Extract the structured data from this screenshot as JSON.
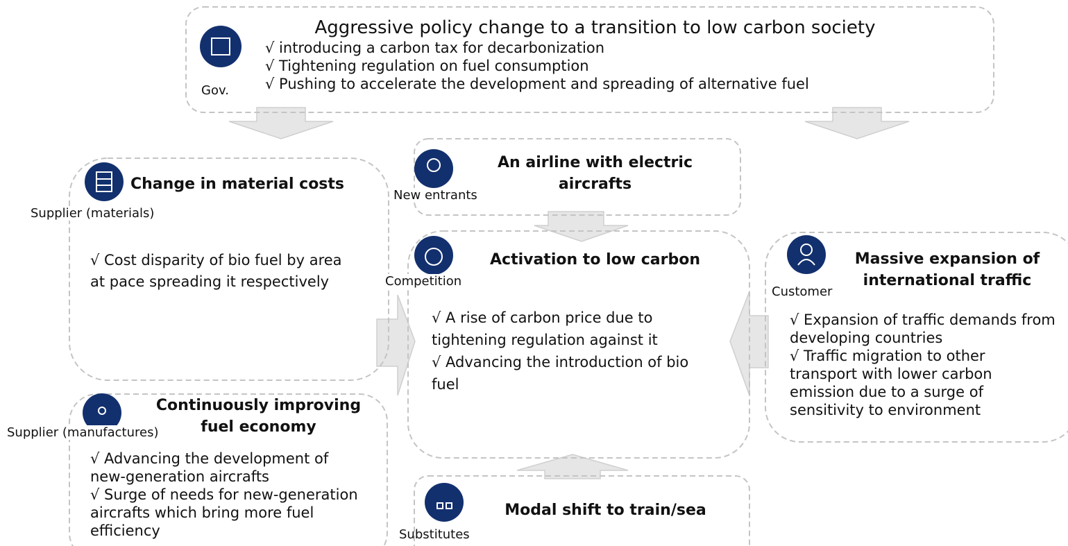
{
  "gov": {
    "label": "Gov.",
    "title": "Aggressive policy change to a transition to low carbon society",
    "bullets": [
      "√  introducing a carbon tax for decarbonization",
      "√  Tightening regulation on fuel consumption",
      "√  Pushing to accelerate the development and spreading of alternative fuel"
    ]
  },
  "new_entrants": {
    "label": "New entrants",
    "title": "An airline with electric aircrafts"
  },
  "supplier_materials": {
    "label": "Supplier (materials)",
    "title": "Change in material costs",
    "bullets": [
      "√  Cost disparity of bio fuel by area at pace spreading it respectively"
    ]
  },
  "supplier_manufactures": {
    "label": "Supplier (manufactures)",
    "title": "Continuously improving fuel economy",
    "bullets": [
      "√  Advancing the development of new-generation aircrafts",
      "√  Surge of needs for new-generation aircrafts which bring more fuel efficiency"
    ]
  },
  "competition": {
    "label": "Competition",
    "title": "Activation to low carbon",
    "bullets": [
      "√  A rise of carbon price due to tightening regulation against it",
      "√  Advancing the introduction of bio fuel"
    ]
  },
  "customer": {
    "label": "Customer",
    "title": "Massive expansion of international traffic",
    "bullets": [
      "√  Expansion of traffic demands from developing countries",
      "√  Traffic migration to other transport with lower carbon emission due to a surge of sensitivity to environment"
    ]
  },
  "substitutes": {
    "label": "Substitutes",
    "title": "Modal shift to train/sea"
  }
}
